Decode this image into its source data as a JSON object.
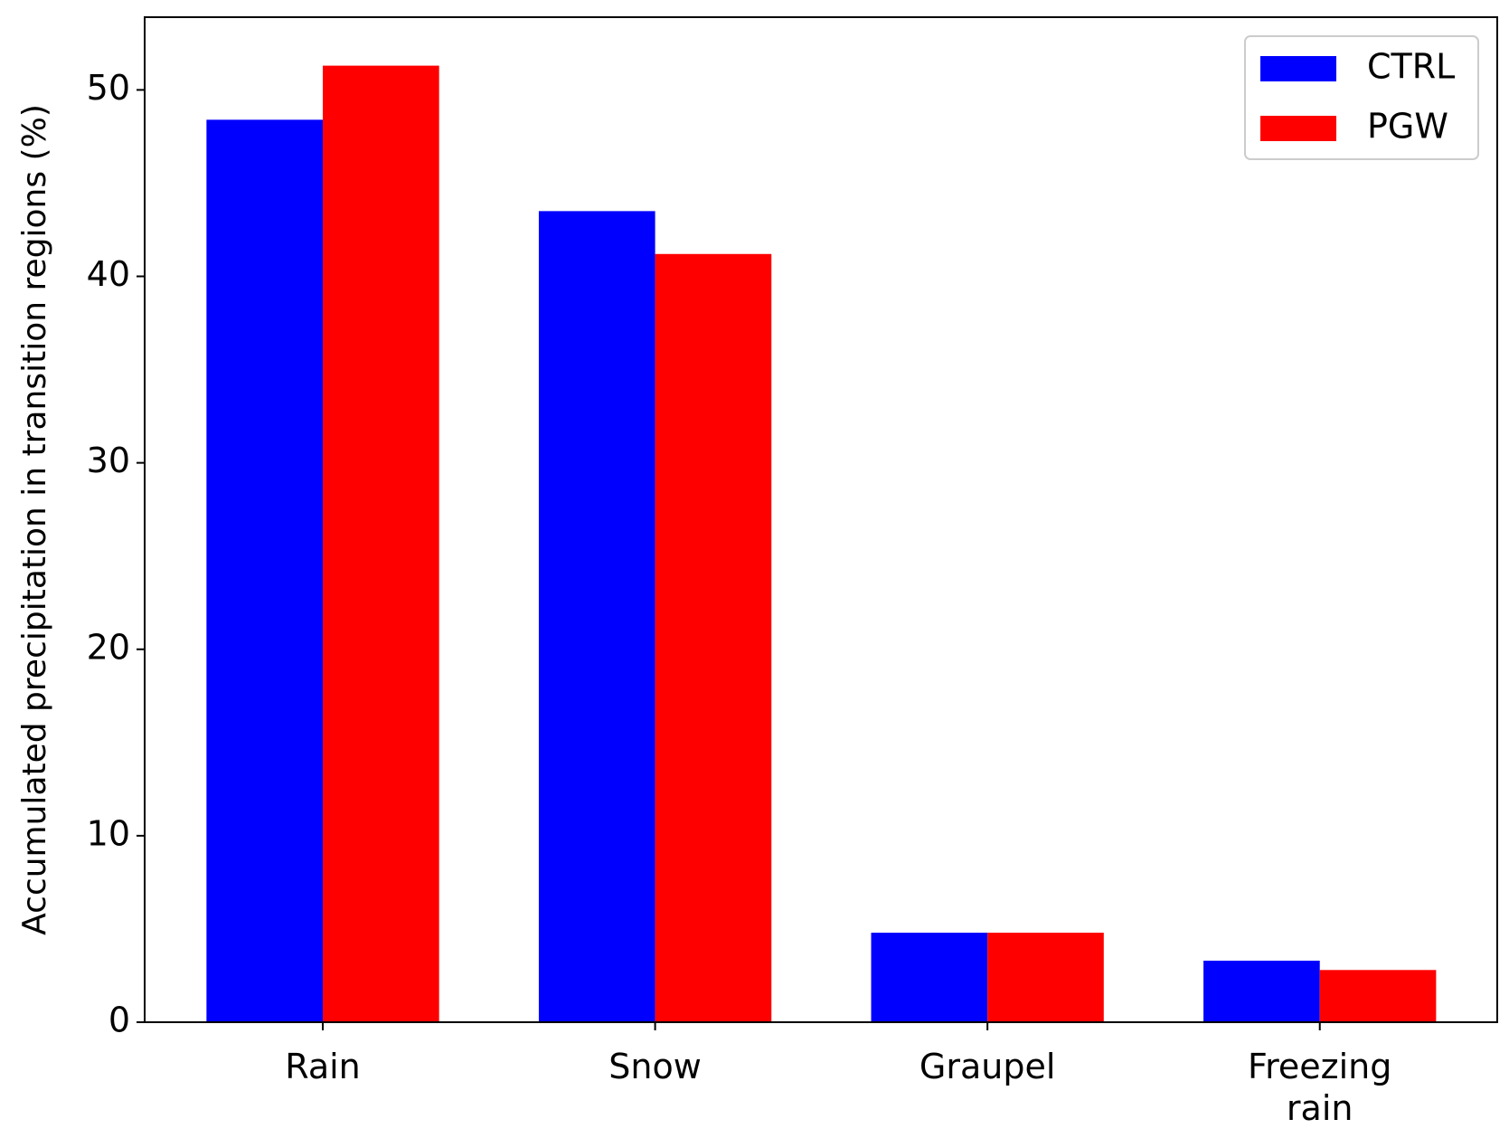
{
  "chart_data": {
    "type": "bar",
    "y_label": "Accumulated precipitation in transition regions (%)",
    "categories": [
      "Rain",
      "Snow",
      "Graupel",
      "Freezing\nrain"
    ],
    "series": [
      {
        "name": "CTRL",
        "color": "#0000ff",
        "values": [
          48.4,
          43.5,
          4.8,
          3.3
        ]
      },
      {
        "name": "PGW",
        "color": "#ff0000",
        "values": [
          51.3,
          41.2,
          4.8,
          2.8
        ]
      }
    ],
    "ylim": [
      0,
      53.9
    ],
    "yticks": [
      0,
      10,
      20,
      30,
      40,
      50
    ],
    "grid": false,
    "legend": "upper right"
  }
}
